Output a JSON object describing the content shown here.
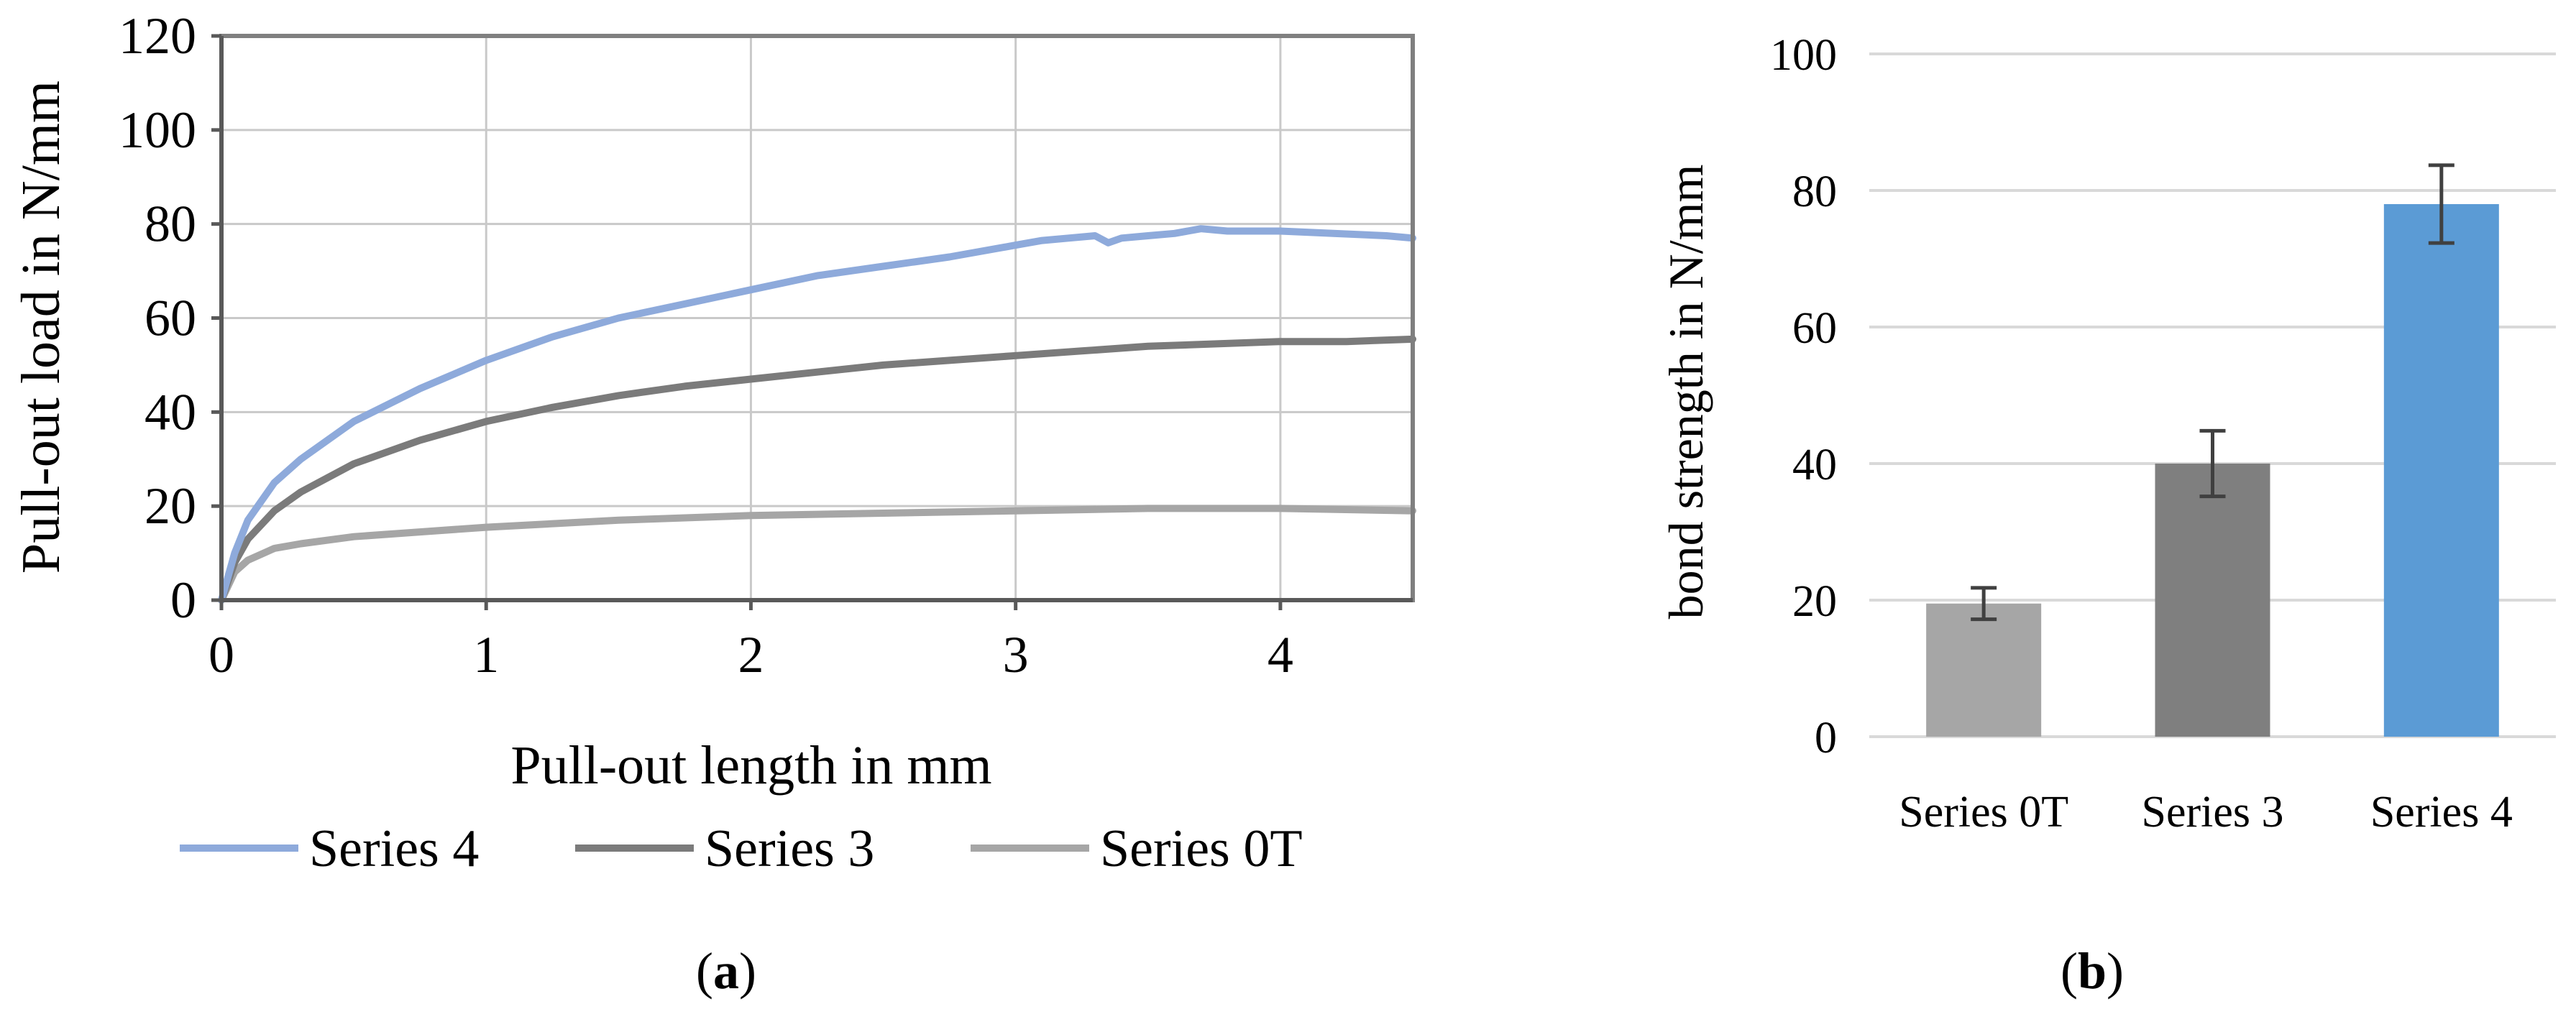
{
  "chart_data": [
    {
      "type": "line",
      "panel_label": "a",
      "xlabel": "Pull-out length in mm",
      "ylabel": "Pull-out load in N/mm",
      "xlim": [
        0,
        4.5
      ],
      "ylim": [
        0,
        120
      ],
      "xticks": [
        0,
        1,
        2,
        3,
        4
      ],
      "yticks": [
        0,
        20,
        40,
        60,
        80,
        100,
        120
      ],
      "ytick_labels": [
        "0",
        "20",
        "40",
        "60",
        "80",
        "100",
        "120"
      ],
      "grid": true,
      "legend_position": "bottom",
      "series": [
        {
          "name": "Series 4",
          "color": "#8eaadb",
          "x": [
            0,
            0.05,
            0.1,
            0.2,
            0.3,
            0.5,
            0.75,
            1.0,
            1.25,
            1.5,
            1.75,
            2.0,
            2.25,
            2.5,
            2.75,
            3.0,
            3.1,
            3.2,
            3.3,
            3.35,
            3.4,
            3.5,
            3.6,
            3.7,
            3.8,
            4.0,
            4.2,
            4.4,
            4.5
          ],
          "values": [
            0,
            10,
            17,
            25,
            30,
            38,
            45,
            51,
            56,
            60,
            63,
            66,
            69,
            71,
            73,
            75.5,
            76.5,
            77,
            77.5,
            76,
            77,
            77.5,
            78,
            79,
            78.5,
            78.5,
            78,
            77.5,
            77
          ]
        },
        {
          "name": "Series 3",
          "color": "#7b7b7b",
          "x": [
            0,
            0.05,
            0.1,
            0.2,
            0.3,
            0.5,
            0.75,
            1.0,
            1.25,
            1.5,
            1.75,
            2.0,
            2.25,
            2.5,
            2.75,
            3.0,
            3.25,
            3.5,
            3.75,
            4.0,
            4.25,
            4.5
          ],
          "values": [
            0,
            8,
            13,
            19,
            23,
            29,
            34,
            38,
            41,
            43.5,
            45.5,
            47,
            48.5,
            50,
            51,
            52,
            53,
            54,
            54.5,
            55,
            55,
            55.5
          ]
        },
        {
          "name": "Series 0T",
          "color": "#a6a6a6",
          "x": [
            0,
            0.05,
            0.1,
            0.2,
            0.3,
            0.5,
            0.75,
            1.0,
            1.5,
            2.0,
            2.5,
            3.0,
            3.5,
            4.0,
            4.5
          ],
          "values": [
            0,
            6,
            8.5,
            11,
            12,
            13.5,
            14.5,
            15.5,
            17,
            18,
            18.5,
            19,
            19.5,
            19.5,
            19
          ]
        }
      ]
    },
    {
      "type": "bar",
      "panel_label": "b",
      "ylabel": "bond strength in N/mm",
      "ylim": [
        0,
        100
      ],
      "yticks": [
        0,
        20,
        40,
        60,
        80,
        100
      ],
      "grid": true,
      "categories": [
        "Series 0T",
        "Series 3",
        "Series 4"
      ],
      "values": [
        19.5,
        40,
        78
      ],
      "error": [
        2.3,
        4.8,
        5.7
      ],
      "colors": [
        "#a6a6a6",
        "#7f7f7f",
        "#5b9bd5"
      ],
      "error_color": "#404040",
      "grid_color": "#d9d9d9"
    }
  ]
}
